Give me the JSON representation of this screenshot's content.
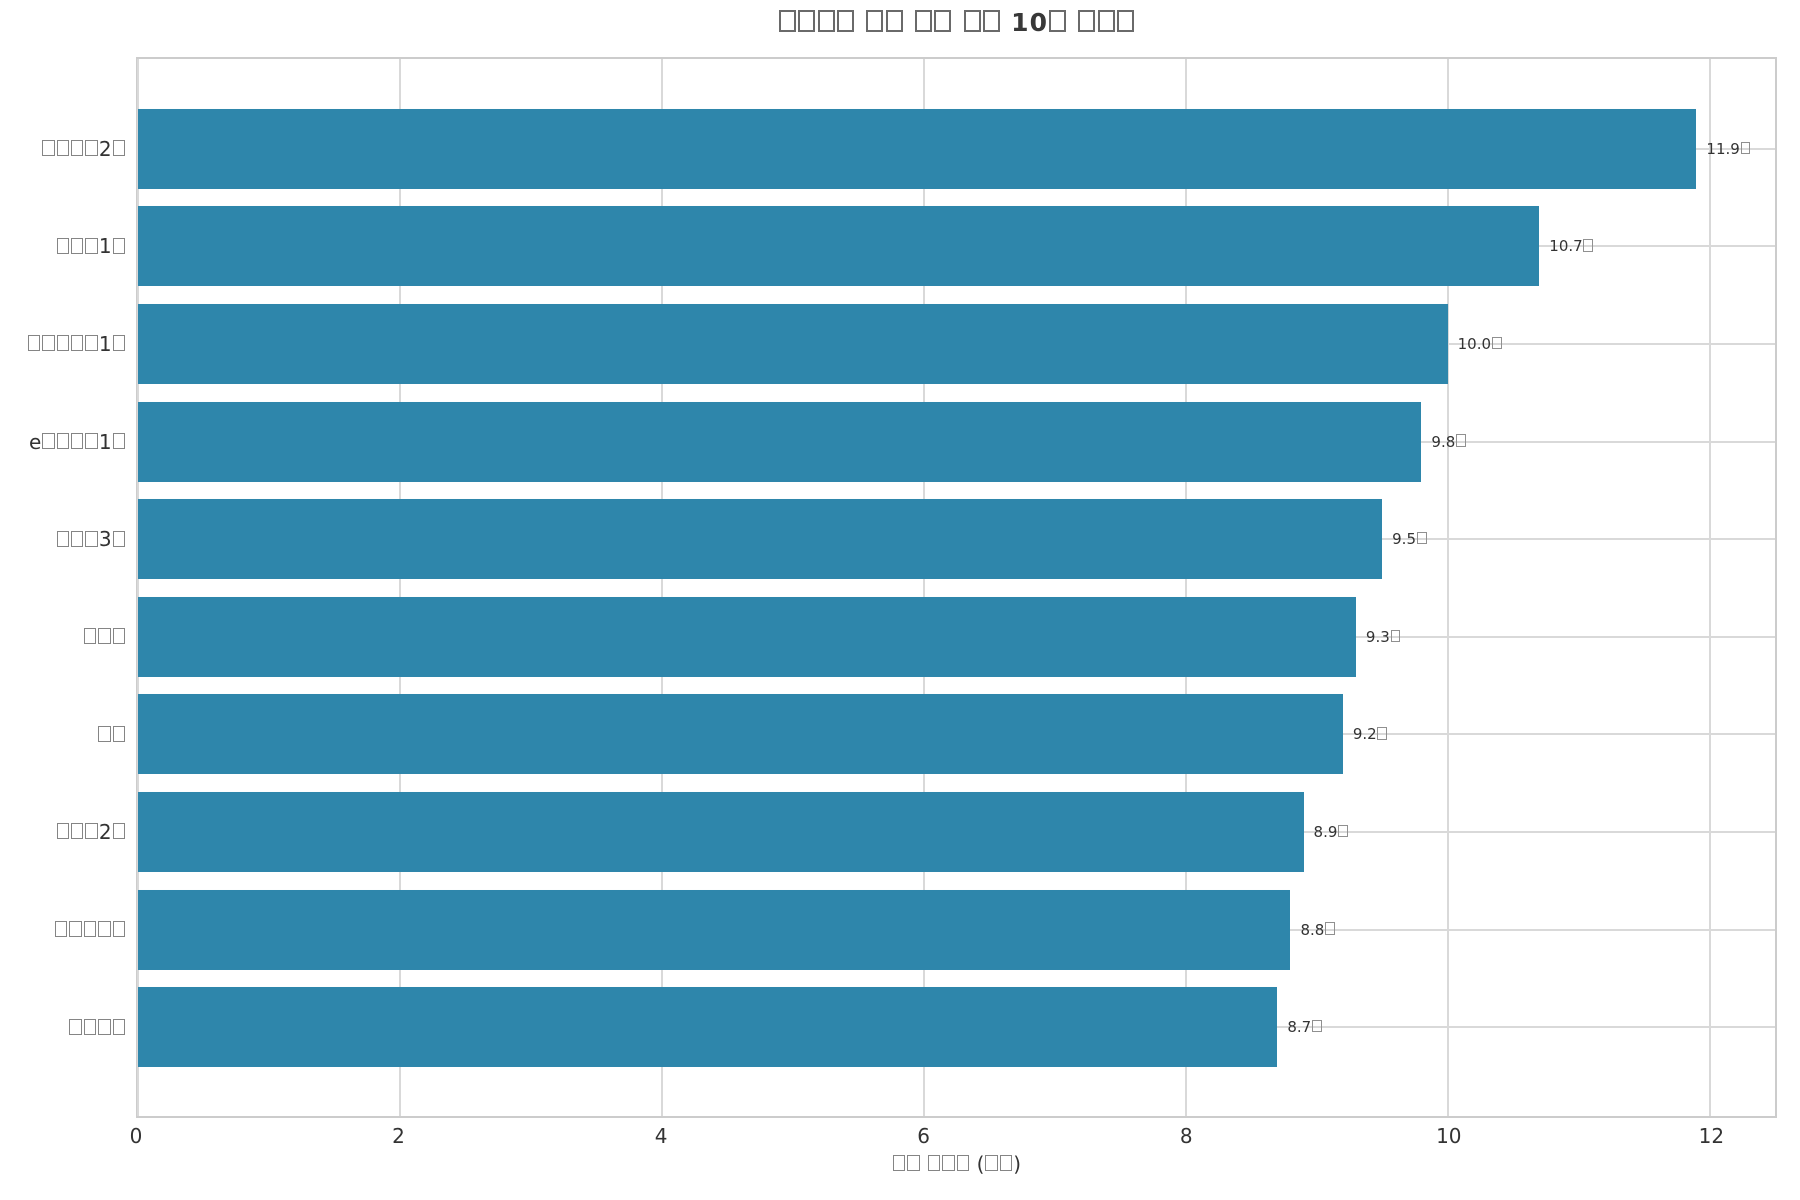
{
  "chart_data": {
    "type": "bar",
    "orientation": "horizontal",
    "title": "□□□□ □□ □□ □□ 10□ □□□",
    "xlabel": "□□ □□□ (□□)",
    "categories": [
      "□□□□2□",
      "□□□1□",
      "□□□□□1□",
      "e□□□□1□",
      "□□□3□",
      "□□□",
      "□□",
      "□□□2□",
      "□□□□□",
      "□□□□"
    ],
    "values": [
      11.9,
      10.7,
      10.0,
      9.8,
      9.5,
      9.3,
      9.2,
      8.9,
      8.8,
      8.7
    ],
    "value_labels": [
      "11.9□",
      "10.7□",
      "10.0□",
      "9.8□",
      "9.5□",
      "9.3□",
      "9.2□",
      "8.9□",
      "8.8□",
      "8.7□"
    ],
    "xticks": [
      "0",
      "2",
      "4",
      "6",
      "8",
      "10",
      "12"
    ],
    "xlim": [
      0,
      12.5
    ],
    "grid": true,
    "legend": false,
    "colors": {
      "bar": "#2E86AB",
      "grid": "#D9D9D9",
      "spine": "#CCCCCC",
      "text": "#333333",
      "title_text": "#383838",
      "missing_glyph_box": "#858585",
      "background": "#FFFFFF"
    }
  }
}
